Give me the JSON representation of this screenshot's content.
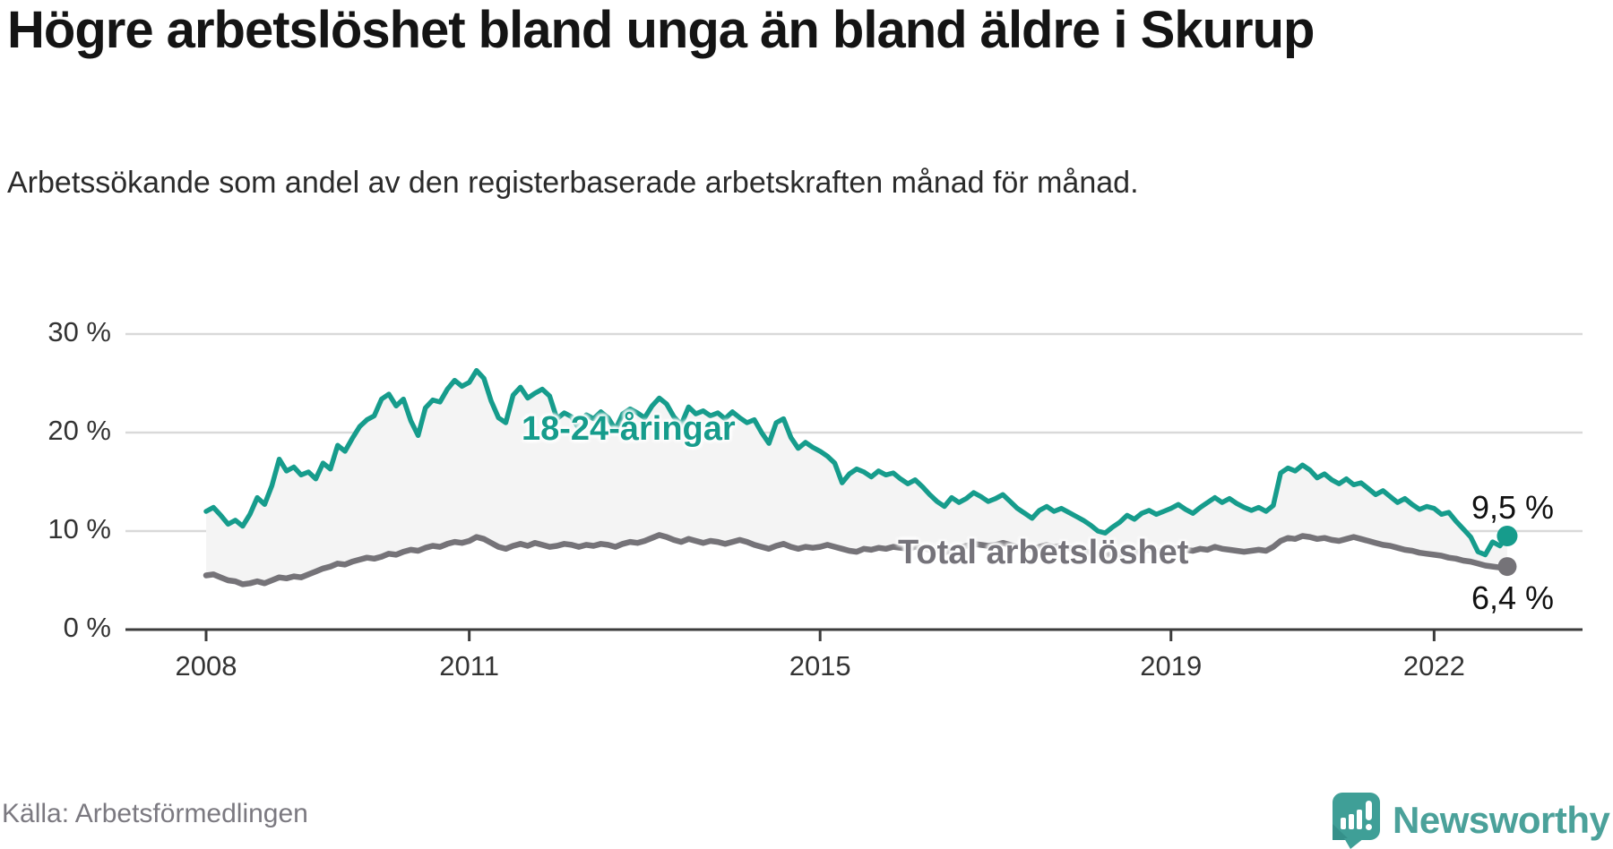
{
  "title": "Högre arbetslöshet bland unga än bland äldre i Skurup",
  "subtitle": "Arbetssökande som andel av den registerbaserade arbetskraften månad för månad.",
  "source": "Källa: Arbetsförmedlingen",
  "logo": {
    "text": "Newsworthy",
    "icon": "newsworthy-speech-bubble-bar-chart-icon"
  },
  "colors": {
    "young_line": "#169c8c",
    "total_line": "#757378",
    "grid": "#d9d9d9",
    "axis": "#3c3c3c",
    "fill_between": "#f4f4f4",
    "logo_teal": "#3f9f97"
  },
  "chart_data": {
    "type": "line",
    "title": "Högre arbetslöshet bland unga än bland äldre i Skurup",
    "subtitle": "Arbetssökande som andel av den registerbaserade arbetskraften månad för månad.",
    "x_start": "2008-01",
    "x_end": "2022-11",
    "x_unit": "month",
    "ylim": [
      0,
      32
    ],
    "grid": "horizontal",
    "legend_position": "inline",
    "y_ticks": [
      {
        "label": "30 %",
        "value": 30
      },
      {
        "label": "20 %",
        "value": 20
      },
      {
        "label": "10 %",
        "value": 10
      },
      {
        "label": "0 %",
        "value": 0
      }
    ],
    "x_ticks": [
      {
        "label": "2008",
        "month": 0
      },
      {
        "label": "2011",
        "month": 36
      },
      {
        "label": "2015",
        "month": 84
      },
      {
        "label": "2019",
        "month": 132
      },
      {
        "label": "2022",
        "month": 168
      }
    ],
    "series": [
      {
        "name": "18-24-åringar",
        "color_key": "young_line",
        "end_label": "9,5 %",
        "end_value": 9.5,
        "values": [
          12.0,
          12.4,
          11.6,
          10.7,
          11.1,
          10.5,
          11.7,
          13.4,
          12.7,
          14.6,
          17.3,
          16.1,
          16.5,
          15.7,
          16.0,
          15.3,
          16.9,
          16.3,
          18.7,
          18.1,
          19.4,
          20.6,
          21.3,
          21.7,
          23.4,
          23.9,
          22.7,
          23.4,
          21.2,
          19.7,
          22.5,
          23.3,
          23.1,
          24.4,
          25.3,
          24.7,
          25.1,
          26.3,
          25.5,
          23.2,
          21.5,
          21.0,
          23.8,
          24.6,
          23.5,
          24.0,
          24.4,
          23.7,
          21.4,
          22.0,
          21.6,
          20.4,
          21.8,
          21.4,
          22.1,
          21.5,
          20.3,
          21.9,
          22.4,
          22.0,
          21.5,
          22.7,
          23.5,
          22.9,
          21.6,
          20.8,
          22.6,
          21.9,
          22.2,
          21.7,
          22.0,
          21.4,
          22.1,
          21.5,
          21.0,
          21.3,
          20.0,
          18.9,
          21.0,
          21.4,
          19.5,
          18.4,
          19.0,
          18.5,
          18.1,
          17.6,
          16.9,
          14.9,
          15.8,
          16.3,
          16.0,
          15.5,
          16.1,
          15.7,
          15.9,
          15.3,
          14.8,
          15.2,
          14.5,
          13.7,
          13.0,
          12.5,
          13.4,
          12.9,
          13.3,
          13.9,
          13.5,
          13.0,
          13.3,
          13.7,
          13.0,
          12.3,
          11.8,
          11.3,
          12.1,
          12.5,
          12.0,
          12.3,
          11.9,
          11.5,
          11.1,
          10.6,
          10.0,
          9.8,
          10.4,
          10.9,
          11.6,
          11.2,
          11.8,
          12.1,
          11.7,
          12.0,
          12.3,
          12.7,
          12.2,
          11.8,
          12.4,
          12.9,
          13.4,
          12.9,
          13.3,
          12.8,
          12.4,
          12.1,
          12.4,
          12.0,
          12.6,
          15.9,
          16.4,
          16.1,
          16.7,
          16.2,
          15.4,
          15.8,
          15.2,
          14.8,
          15.3,
          14.7,
          14.9,
          14.3,
          13.7,
          14.1,
          13.5,
          12.9,
          13.3,
          12.7,
          12.2,
          12.5,
          12.3,
          11.7,
          11.9,
          11.0,
          10.2,
          9.4,
          7.9,
          7.6,
          8.9,
          8.5,
          9.5
        ]
      },
      {
        "name": "Total arbetslöshet",
        "color_key": "total_line",
        "end_label": "6,4 %",
        "end_value": 6.4,
        "values": [
          5.5,
          5.6,
          5.3,
          5.0,
          4.9,
          4.6,
          4.7,
          4.9,
          4.7,
          5.0,
          5.3,
          5.2,
          5.4,
          5.3,
          5.6,
          5.9,
          6.2,
          6.4,
          6.7,
          6.6,
          6.9,
          7.1,
          7.3,
          7.2,
          7.4,
          7.7,
          7.6,
          7.9,
          8.1,
          8.0,
          8.3,
          8.5,
          8.4,
          8.7,
          8.9,
          8.8,
          9.0,
          9.4,
          9.2,
          8.8,
          8.4,
          8.2,
          8.5,
          8.7,
          8.5,
          8.8,
          8.6,
          8.4,
          8.5,
          8.7,
          8.6,
          8.4,
          8.6,
          8.5,
          8.7,
          8.6,
          8.4,
          8.7,
          8.9,
          8.8,
          9.0,
          9.3,
          9.6,
          9.4,
          9.1,
          8.9,
          9.2,
          9.0,
          8.8,
          9.0,
          8.9,
          8.7,
          8.9,
          9.1,
          8.9,
          8.6,
          8.4,
          8.2,
          8.5,
          8.7,
          8.4,
          8.2,
          8.4,
          8.3,
          8.4,
          8.6,
          8.4,
          8.2,
          8.0,
          7.9,
          8.2,
          8.1,
          8.3,
          8.2,
          8.4,
          8.3,
          8.2,
          8.4,
          8.3,
          8.1,
          8.0,
          7.8,
          8.1,
          8.3,
          8.5,
          8.7,
          8.6,
          8.5,
          8.6,
          8.8,
          8.6,
          8.4,
          8.3,
          8.1,
          8.4,
          8.6,
          8.4,
          8.5,
          8.3,
          8.1,
          8.0,
          7.8,
          7.6,
          7.5,
          7.7,
          7.6,
          7.9,
          7.7,
          8.0,
          8.1,
          7.9,
          8.0,
          8.1,
          8.3,
          8.1,
          8.0,
          8.2,
          8.1,
          8.4,
          8.2,
          8.1,
          8.0,
          7.9,
          8.0,
          8.1,
          8.0,
          8.4,
          9.0,
          9.3,
          9.2,
          9.5,
          9.4,
          9.2,
          9.3,
          9.1,
          9.0,
          9.2,
          9.4,
          9.2,
          9.0,
          8.8,
          8.6,
          8.5,
          8.3,
          8.1,
          8.0,
          7.8,
          7.7,
          7.6,
          7.5,
          7.3,
          7.2,
          7.0,
          6.9,
          6.7,
          6.5,
          6.4,
          6.3,
          6.4
        ]
      }
    ]
  }
}
